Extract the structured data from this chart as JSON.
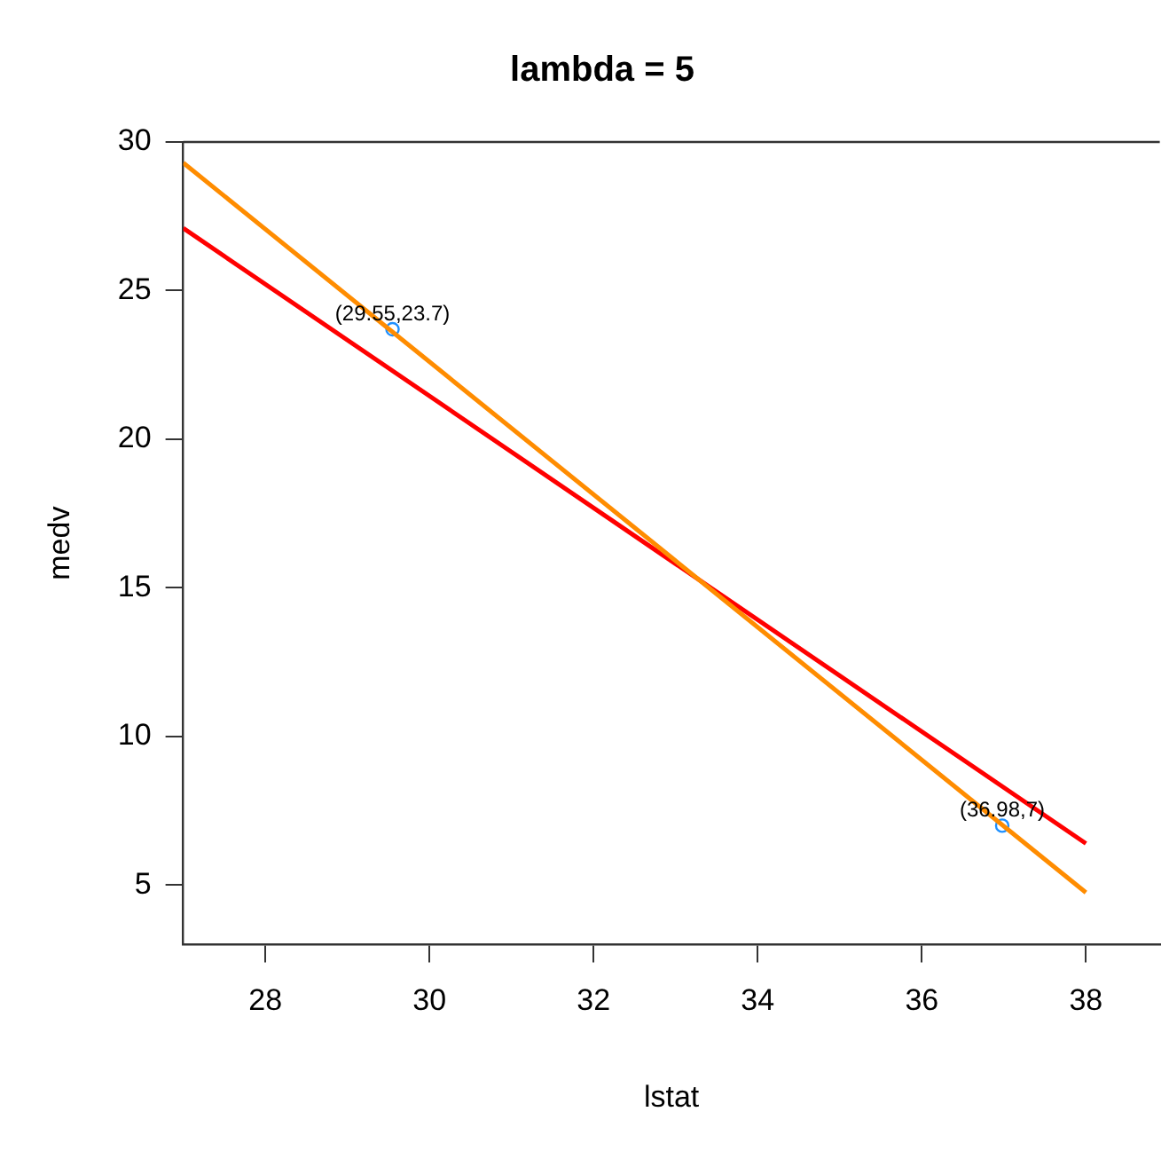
{
  "chart_data": {
    "type": "line",
    "title": "lambda = 5",
    "xlabel": "lstat",
    "ylabel": "medv",
    "xlim": [
      27,
      38.9
    ],
    "ylim": [
      3,
      30
    ],
    "xticks": [
      28,
      30,
      32,
      34,
      36,
      38
    ],
    "yticks": [
      5,
      10,
      15,
      20,
      25,
      30
    ],
    "grid": false,
    "legend": false,
    "series": [
      {
        "color": "#ff8c00",
        "x": [
          27,
          38
        ],
        "values": [
          29.3,
          4.75
        ]
      },
      {
        "color": "#ff0000",
        "x": [
          27,
          38
        ],
        "values": [
          27.1,
          6.4
        ]
      },
      {
        "type": "scatter",
        "color": "#1e90ff",
        "x": [
          29.55,
          36.98
        ],
        "values": [
          23.7,
          7
        ],
        "marker": "circle"
      }
    ],
    "annotations": [
      {
        "text": "(29.55,23.7)",
        "x": 29.55,
        "y": 23.7
      },
      {
        "text": "(36.98,7)",
        "x": 36.98,
        "y": 7
      }
    ]
  }
}
